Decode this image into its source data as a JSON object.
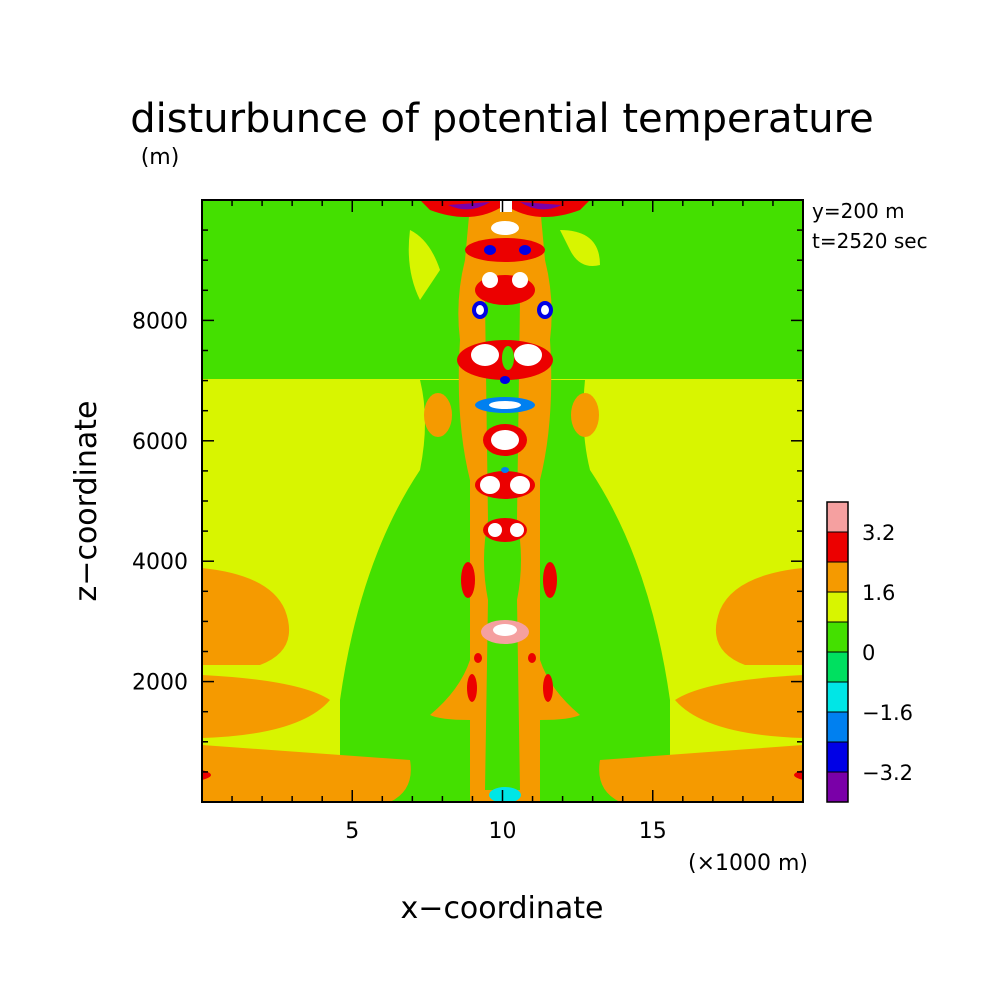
{
  "chart_data": {
    "type": "heatmap",
    "title": "disturbunce of potential temperature",
    "ylabel_unit": "(m)",
    "xlabel": "x−coordinate",
    "ylabel": "z−coordinate",
    "xlabel_unit": "(×1000 m)",
    "annotations": [
      "y=200 m",
      "t=2520 sec"
    ],
    "xlim": [
      0,
      20
    ],
    "ylim": [
      0,
      10000
    ],
    "x_ticks": [
      {
        "value": 5,
        "label": "5"
      },
      {
        "value": 10,
        "label": "10"
      },
      {
        "value": 15,
        "label": "15"
      }
    ],
    "y_ticks": [
      {
        "value": 2000,
        "label": "2000"
      },
      {
        "value": 4000,
        "label": "4000"
      },
      {
        "value": 6000,
        "label": "6000"
      },
      {
        "value": 8000,
        "label": "8000"
      }
    ],
    "colorbar": {
      "levels": [
        -4.0,
        -3.2,
        -2.4,
        -1.6,
        -0.8,
        0,
        0.8,
        1.6,
        2.4,
        3.2,
        4.0
      ],
      "colors": [
        "#7a00a8",
        "#0000e6",
        "#0080f0",
        "#00e6e6",
        "#00e060",
        "#44e000",
        "#d8f500",
        "#f59a00",
        "#ec0000",
        "#f5a0a0"
      ],
      "tick_labels": [
        {
          "value": -3.2,
          "label": "−3.2"
        },
        {
          "value": -1.6,
          "label": "−1.6"
        },
        {
          "value": 0,
          "label": "0"
        },
        {
          "value": 1.6,
          "label": "1.6"
        },
        {
          "value": 3.2,
          "label": "3.2"
        }
      ]
    },
    "field_regions": [
      {
        "value": 0.4,
        "x": [
          0,
          20
        ],
        "z": [
          0,
          10000
        ]
      },
      {
        "value": 1.2,
        "x": [
          0,
          20
        ],
        "z": [
          0,
          7100
        ]
      },
      {
        "value": 0.4,
        "x": [
          5.5,
          14.5
        ],
        "z": [
          1500,
          7100
        ]
      },
      {
        "value": 2.0,
        "x": [
          0,
          5.5
        ],
        "z": [
          300,
          1900
        ]
      },
      {
        "value": 2.0,
        "x": [
          14.5,
          20
        ],
        "z": [
          300,
          1900
        ]
      },
      {
        "value": 2.0,
        "x": [
          0,
          6
        ],
        "z": [
          2800,
          3900
        ]
      },
      {
        "value": 2.0,
        "x": [
          14,
          20
        ],
        "z": [
          2800,
          3900
        ]
      },
      {
        "value": 2.8,
        "x": [
          0,
          0.5
        ],
        "z": [
          350,
          450
        ]
      },
      {
        "value": 2.8,
        "x": [
          19.5,
          20
        ],
        "z": [
          350,
          450
        ]
      },
      {
        "value": 1.2,
        "x": [
          8.5,
          11.5
        ],
        "z": [
          0,
          2500
        ]
      },
      {
        "value": 2.0,
        "x": [
          8.8,
          11.2
        ],
        "z": [
          2500,
          9900
        ]
      },
      {
        "value": 3.6,
        "x": [
          9.2,
          10.8
        ],
        "z": [
          2600,
          9800
        ]
      },
      {
        "value": -1.2,
        "x": [
          9.5,
          10.5
        ],
        "z": [
          0,
          100
        ]
      }
    ]
  }
}
